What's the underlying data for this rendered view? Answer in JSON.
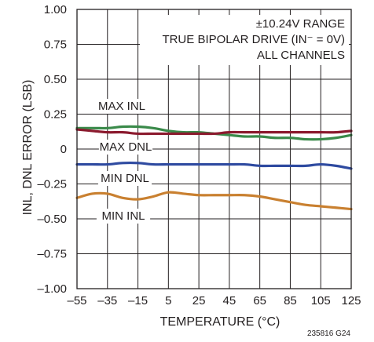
{
  "chart_data": {
    "type": "line",
    "xlabel": "TEMPERATURE  (°C)",
    "ylabel": "INL, DNL ERROR (LSB)",
    "xlim": [
      -55,
      125
    ],
    "ylim": [
      -1.0,
      1.0
    ],
    "x_ticks": [
      -55,
      -35,
      -15,
      5,
      25,
      45,
      65,
      85,
      105,
      125
    ],
    "x_tick_labels": [
      "–55",
      "–35",
      "–15",
      "5",
      "25",
      "45",
      "65",
      "85",
      "105",
      "125"
    ],
    "y_ticks": [
      1.0,
      0.75,
      0.5,
      0.25,
      0,
      -0.25,
      -0.5,
      -0.75,
      -1.0
    ],
    "y_tick_labels": [
      "1.00",
      "0.75",
      "0.50",
      "0.25",
      "0",
      "–0.25",
      "–0.50",
      "–0.75",
      "–1.00"
    ],
    "grid": true,
    "annotations": {
      "line1": "±10.24V RANGE",
      "line2": "TRUE BIPOLAR DRIVE (IN⁻ = 0V)",
      "line3": "ALL CHANNELS"
    },
    "figure_code": "235816 G24",
    "series": [
      {
        "name": "MAX INL",
        "color": "#3a8a4a",
        "x": [
          -55,
          -45,
          -35,
          -25,
          -15,
          -5,
          5,
          15,
          25,
          35,
          45,
          55,
          65,
          75,
          85,
          95,
          105,
          115,
          125
        ],
        "y": [
          0.15,
          0.15,
          0.15,
          0.16,
          0.16,
          0.15,
          0.13,
          0.12,
          0.12,
          0.11,
          0.1,
          0.09,
          0.09,
          0.08,
          0.08,
          0.07,
          0.07,
          0.08,
          0.1
        ]
      },
      {
        "name": "MAX DNL",
        "color": "#8b1a2e",
        "x": [
          -55,
          -45,
          -35,
          -25,
          -15,
          -5,
          5,
          15,
          25,
          35,
          45,
          55,
          65,
          75,
          85,
          95,
          105,
          115,
          125
        ],
        "y": [
          0.14,
          0.13,
          0.12,
          0.12,
          0.11,
          0.11,
          0.11,
          0.11,
          0.11,
          0.11,
          0.12,
          0.12,
          0.12,
          0.12,
          0.12,
          0.12,
          0.12,
          0.12,
          0.13
        ]
      },
      {
        "name": "MIN DNL",
        "color": "#2e4aa0",
        "x": [
          -55,
          -45,
          -35,
          -25,
          -15,
          -5,
          5,
          15,
          25,
          35,
          45,
          55,
          65,
          75,
          85,
          95,
          105,
          115,
          125
        ],
        "y": [
          -0.11,
          -0.11,
          -0.11,
          -0.1,
          -0.1,
          -0.11,
          -0.11,
          -0.11,
          -0.11,
          -0.11,
          -0.11,
          -0.11,
          -0.12,
          -0.12,
          -0.12,
          -0.12,
          -0.11,
          -0.12,
          -0.14
        ]
      },
      {
        "name": "MIN INL",
        "color": "#c98030",
        "x": [
          -55,
          -45,
          -35,
          -25,
          -15,
          -5,
          5,
          15,
          25,
          35,
          45,
          55,
          65,
          75,
          85,
          95,
          105,
          115,
          125
        ],
        "y": [
          -0.35,
          -0.32,
          -0.32,
          -0.35,
          -0.36,
          -0.34,
          -0.31,
          -0.32,
          -0.33,
          -0.33,
          -0.33,
          -0.33,
          -0.34,
          -0.36,
          -0.38,
          -0.4,
          -0.41,
          -0.42,
          -0.43
        ]
      }
    ]
  }
}
